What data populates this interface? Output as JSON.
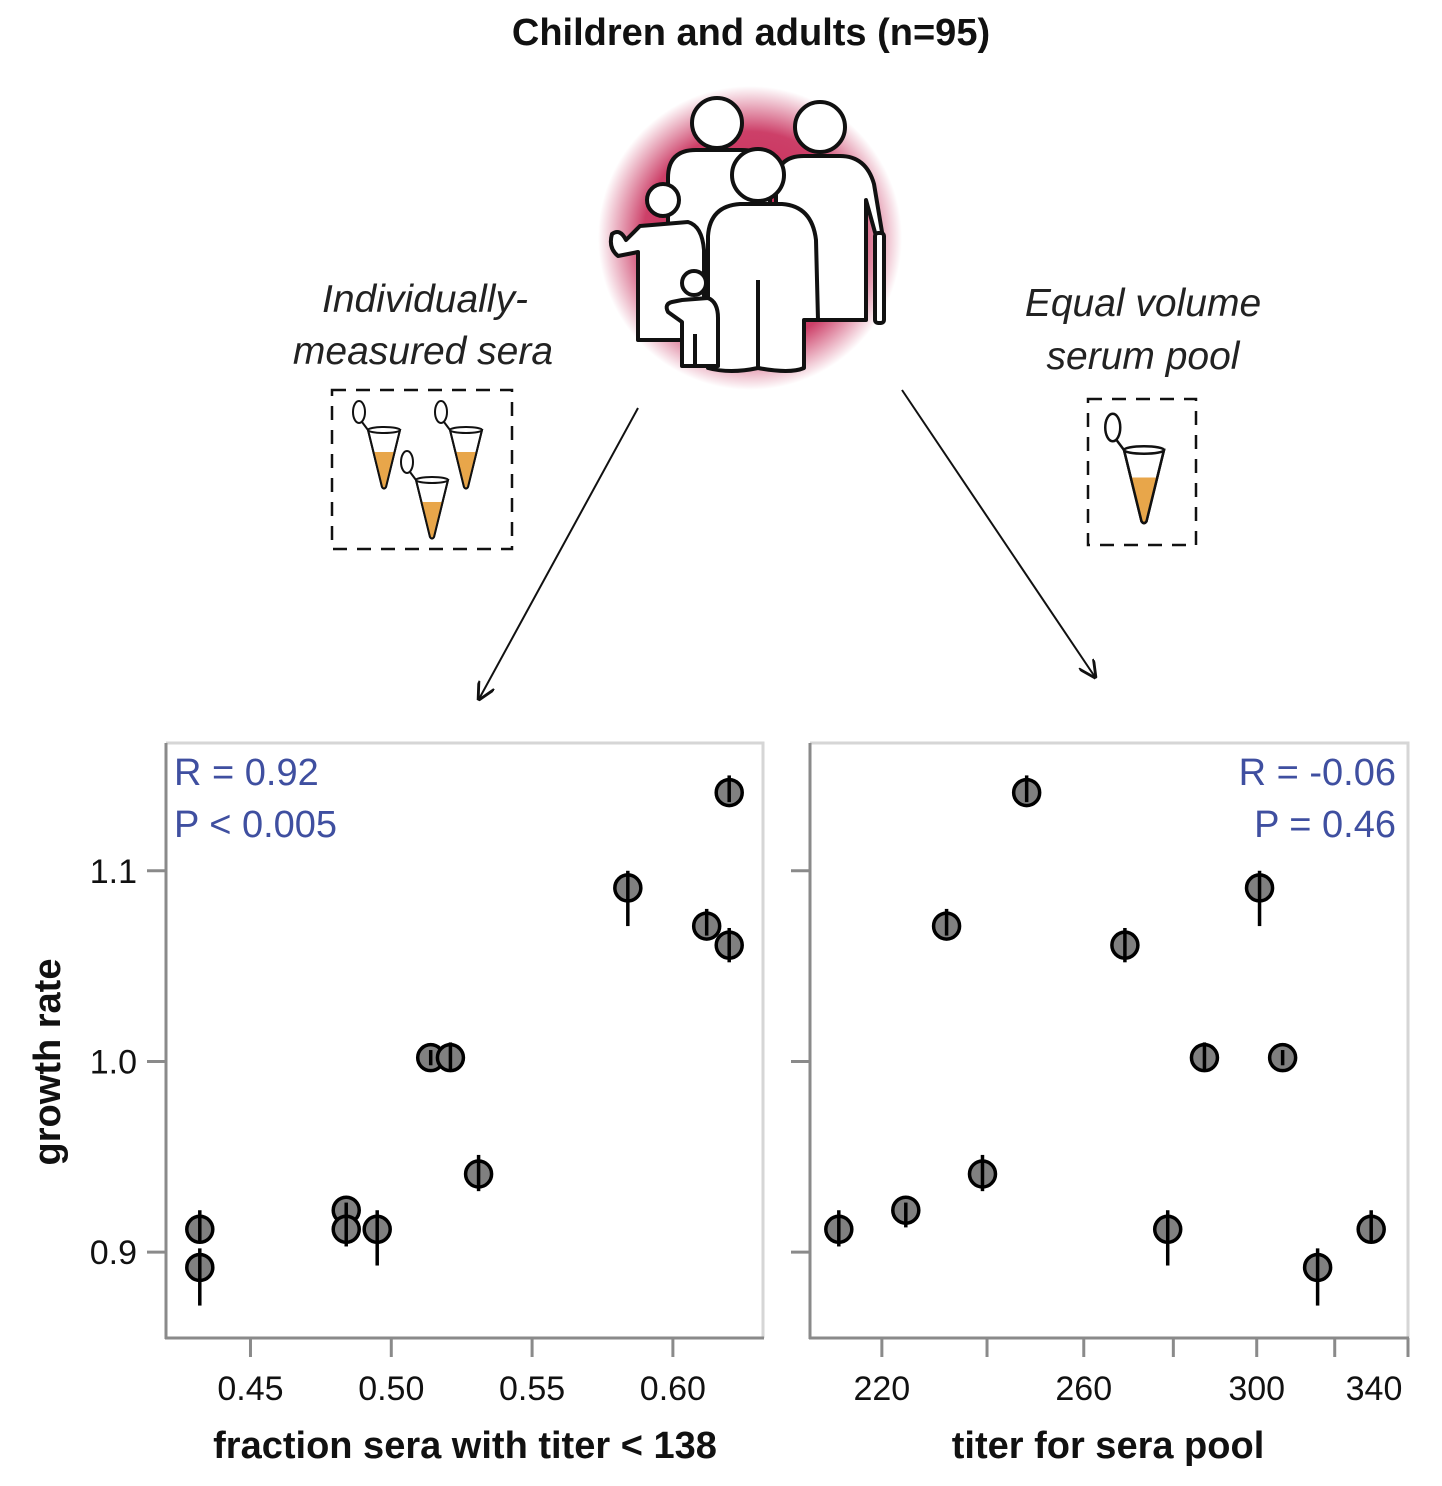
{
  "title": "Children and adults (n=95)",
  "left_caption": [
    "Individually-",
    "measured sera"
  ],
  "right_caption": [
    "Equal volume",
    "serum pool"
  ],
  "colors": {
    "glow": "#c41e4e",
    "liquid": "#e8a64a",
    "stat_text": "#3f4fa0",
    "marker": "#808080"
  },
  "icons": [
    "family-icon",
    "sample-tube-icon",
    "arrow-icon"
  ],
  "chart_data": [
    {
      "type": "scatter",
      "title": "",
      "xlabel": "fraction sera with titer < 138",
      "ylabel": "growth rate",
      "xscale": "linear",
      "xlim": [
        0.42,
        0.632
      ],
      "ylim": [
        0.855,
        1.167
      ],
      "xticks": [
        0.45,
        0.5,
        0.55,
        0.6
      ],
      "xtick_labels": [
        "0.45",
        "0.50",
        "0.55",
        "0.60"
      ],
      "yticks": [
        0.9,
        1.0,
        1.1
      ],
      "ytick_labels": [
        "0.9",
        "1.0",
        "1.1"
      ],
      "stats": {
        "r": "R = 0.92",
        "p": "P < 0.005",
        "align": "top-left"
      },
      "points": [
        {
          "x": 0.432,
          "y": 0.912,
          "err": [
            0.906,
            0.922
          ]
        },
        {
          "x": 0.432,
          "y": 0.892,
          "err": [
            0.872,
            0.902
          ]
        },
        {
          "x": 0.484,
          "y": 0.922,
          "err": [
            0.918,
            0.926
          ]
        },
        {
          "x": 0.484,
          "y": 0.912,
          "err": [
            0.903,
            0.922
          ]
        },
        {
          "x": 0.495,
          "y": 0.912,
          "err": [
            0.893,
            0.922
          ]
        },
        {
          "x": 0.514,
          "y": 1.002,
          "err": [
            0.998,
            1.006
          ]
        },
        {
          "x": 0.521,
          "y": 1.002,
          "err": [
            0.996,
            1.01
          ]
        },
        {
          "x": 0.531,
          "y": 0.941,
          "err": [
            0.932,
            0.951
          ]
        },
        {
          "x": 0.584,
          "y": 1.091,
          "err": [
            1.071,
            1.1
          ]
        },
        {
          "x": 0.612,
          "y": 1.071,
          "err": [
            1.066,
            1.08
          ]
        },
        {
          "x": 0.62,
          "y": 1.061,
          "err": [
            1.052,
            1.07
          ]
        },
        {
          "x": 0.62,
          "y": 1.141,
          "err": [
            1.136,
            1.15
          ]
        }
      ]
    },
    {
      "type": "scatter",
      "title": "",
      "xlabel": "titer for sera pool",
      "ylabel": "",
      "xscale": "log",
      "xlim": [
        207.3,
        340
      ],
      "ylim": [
        0.855,
        1.167
      ],
      "xticks": [
        220,
        240,
        260,
        280,
        300,
        320,
        340
      ],
      "xtick_labels": [
        "220",
        "",
        "260",
        "",
        "300",
        "",
        "340"
      ],
      "yticks": [
        0.9,
        1.0,
        1.1
      ],
      "ytick_labels": [],
      "stats": {
        "r": "R = -0.06",
        "p": "P = 0.46",
        "align": "top-right"
      },
      "points": [
        {
          "x": 212.3,
          "y": 0.912,
          "err": [
            0.903,
            0.922
          ]
        },
        {
          "x": 224.4,
          "y": 0.922,
          "err": [
            0.913,
            0.926
          ]
        },
        {
          "x": 232.1,
          "y": 1.071,
          "err": [
            1.066,
            1.08
          ]
        },
        {
          "x": 239.1,
          "y": 0.941,
          "err": [
            0.932,
            0.951
          ]
        },
        {
          "x": 248.0,
          "y": 1.141,
          "err": [
            1.136,
            1.15
          ]
        },
        {
          "x": 269.0,
          "y": 1.061,
          "err": [
            1.052,
            1.07
          ]
        },
        {
          "x": 278.7,
          "y": 0.912,
          "err": [
            0.893,
            0.922
          ]
        },
        {
          "x": 287.3,
          "y": 1.002,
          "err": [
            0.996,
            1.01
          ]
        },
        {
          "x": 300.7,
          "y": 1.091,
          "err": [
            1.071,
            1.1
          ]
        },
        {
          "x": 306.5,
          "y": 1.002,
          "err": [
            0.998,
            1.006
          ]
        },
        {
          "x": 315.5,
          "y": 0.892,
          "err": [
            0.872,
            0.902
          ]
        },
        {
          "x": 329.8,
          "y": 0.912,
          "err": [
            0.906,
            0.922
          ]
        }
      ]
    }
  ]
}
